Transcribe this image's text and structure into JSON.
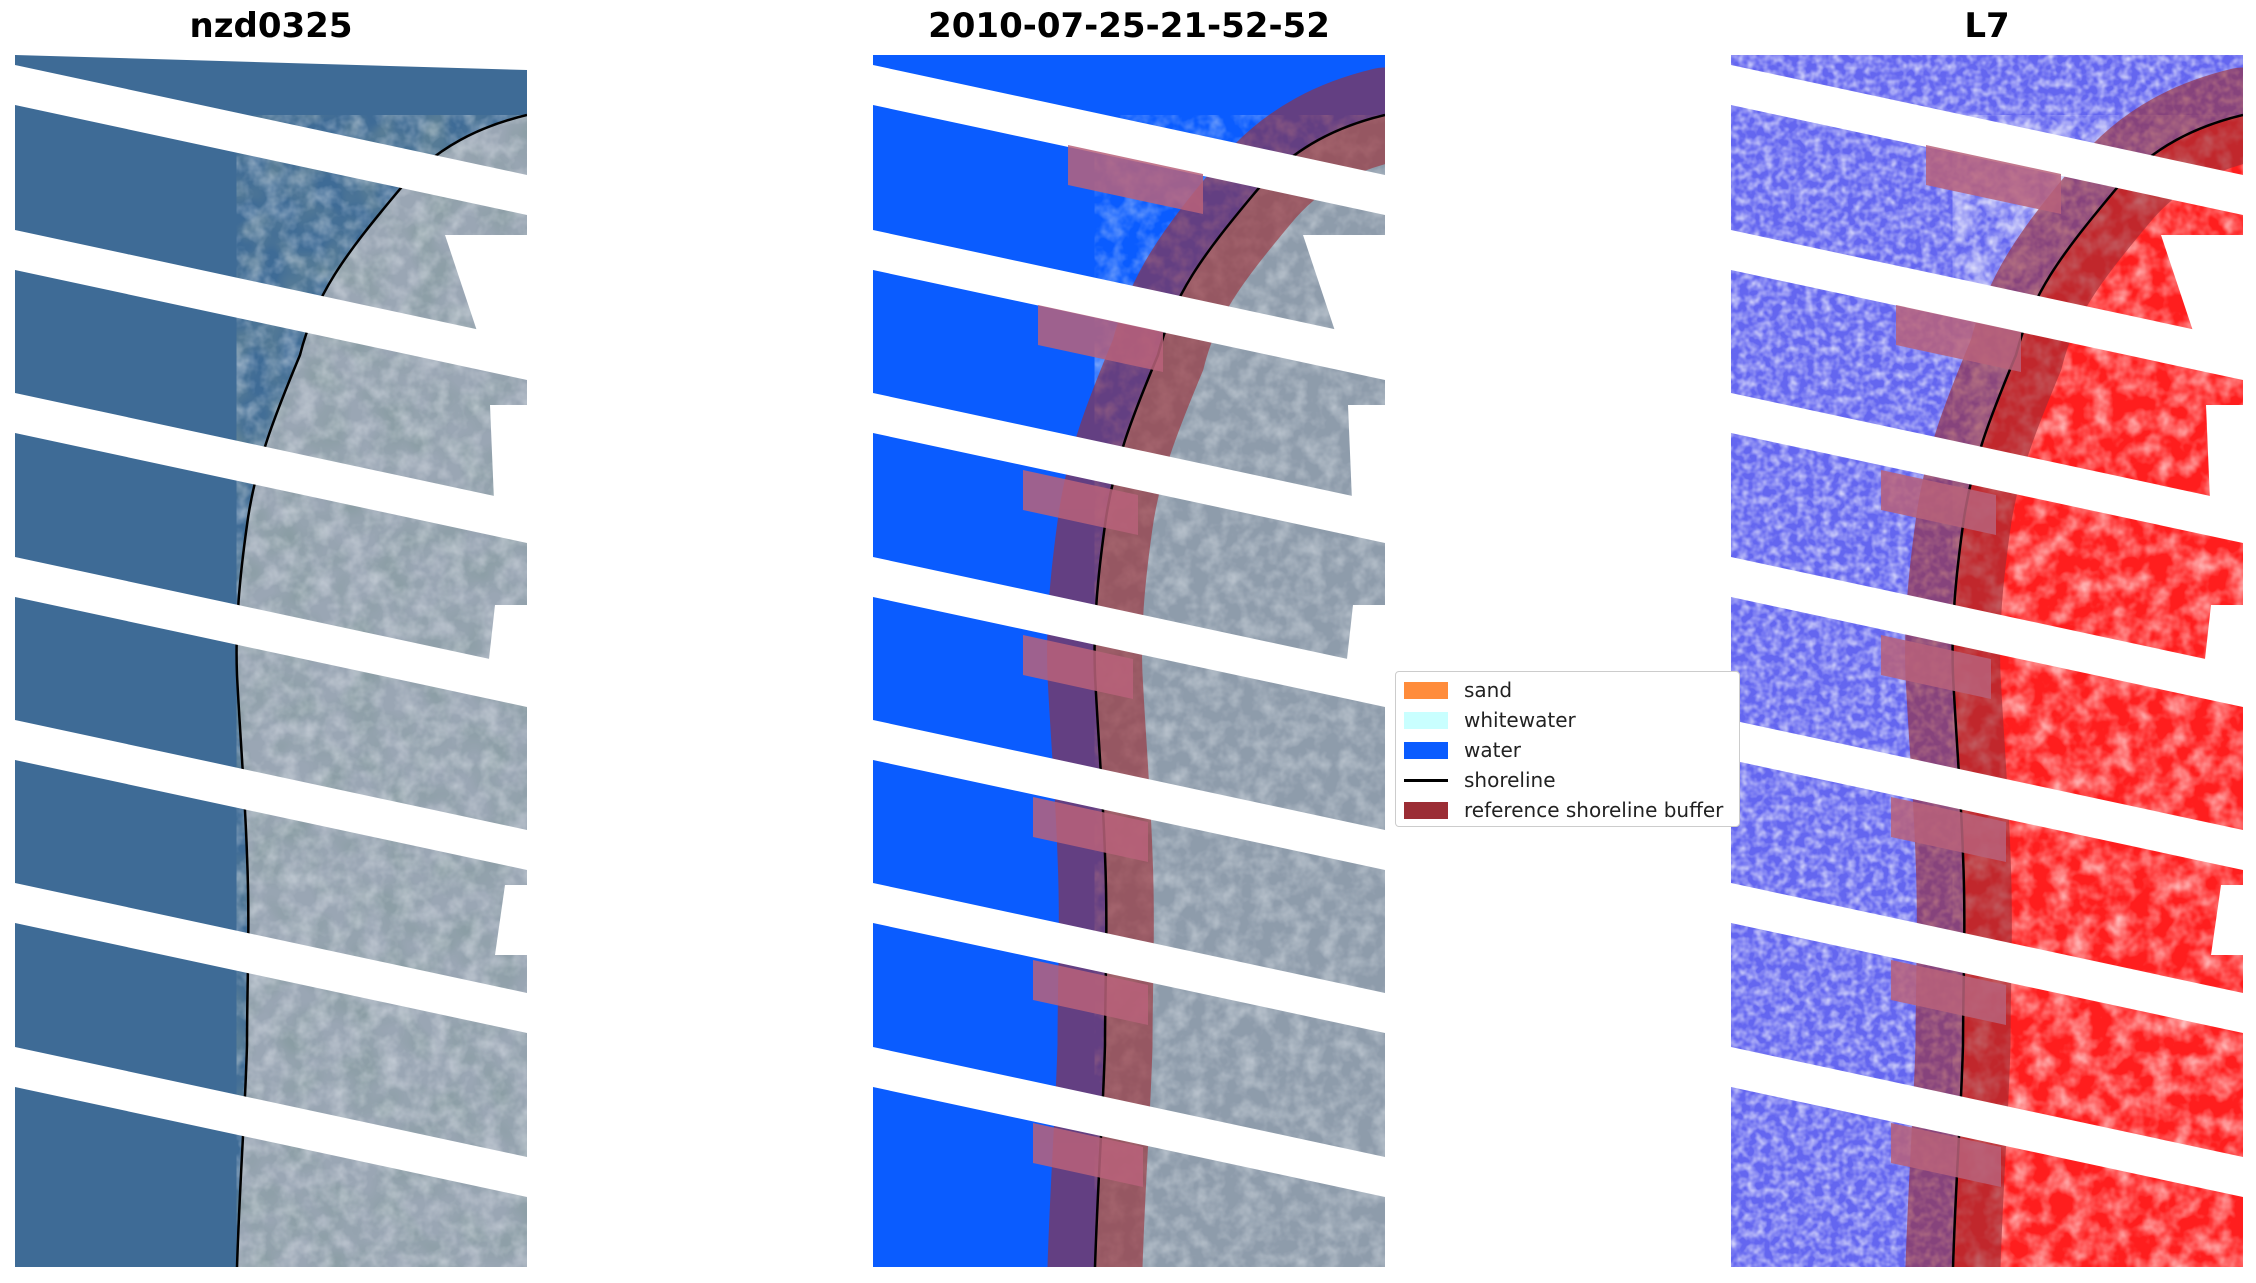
{
  "panels": [
    {
      "id": "rgb",
      "title": "nzd0325"
    },
    {
      "id": "classified",
      "title": "2010-07-25-21-52-52"
    },
    {
      "id": "index",
      "title": "L7"
    }
  ],
  "legend": {
    "items": [
      {
        "label": "sand",
        "color": "#ff8c3b",
        "kind": "patch"
      },
      {
        "label": "whitewater",
        "color": "#c9ffff",
        "kind": "patch"
      },
      {
        "label": "water",
        "color": "#0a5cff",
        "kind": "patch"
      },
      {
        "label": "shoreline",
        "color": "#000000",
        "kind": "line"
      },
      {
        "label": "reference shoreline buffer",
        "color": "#9b2d35",
        "kind": "patch"
      }
    ]
  },
  "colors": {
    "water_rgb": "#3e6b96",
    "land_rgb": "#9aa6b4",
    "water_class": "#0a5cff",
    "buffer": "#9b2d35",
    "index_water": "#4a4df5",
    "index_land": "#ff1e1e"
  }
}
